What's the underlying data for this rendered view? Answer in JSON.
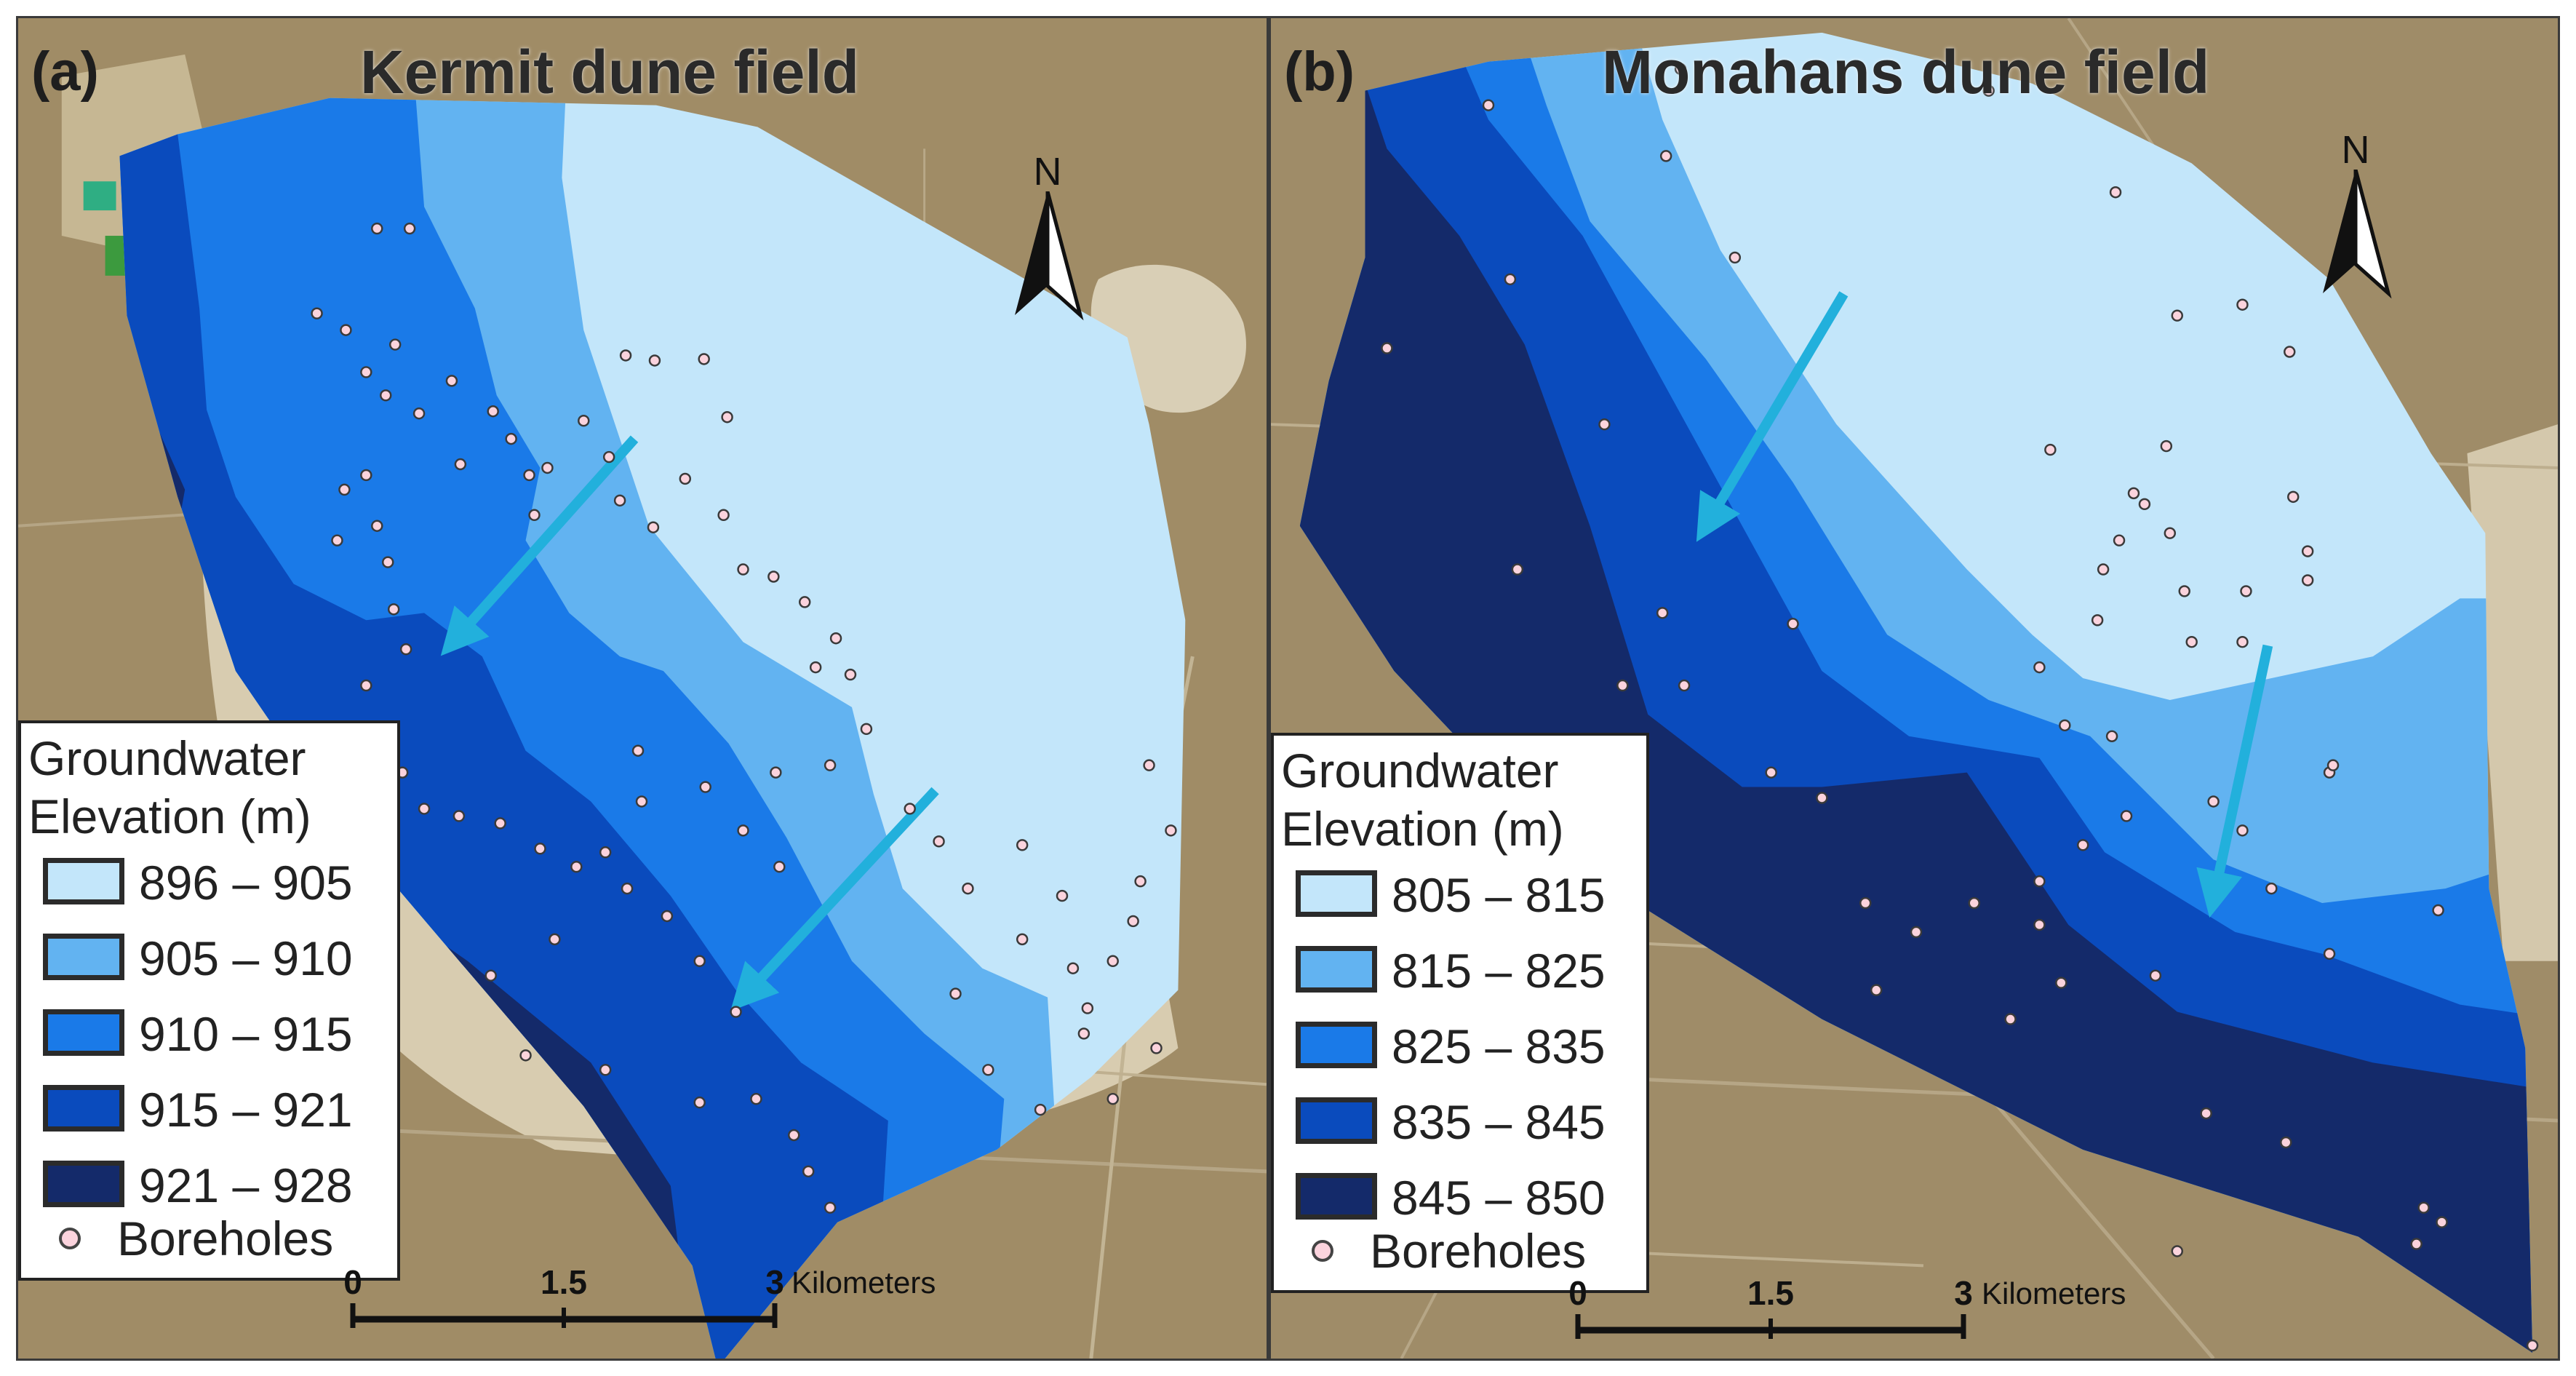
{
  "panels": [
    {
      "label": "(a)",
      "title": "Kermit dune field",
      "north": "N",
      "legend": {
        "title": "Groundwater\nElevation (m)",
        "classes": [
          {
            "range": "896 – 905",
            "color": "#c3e6fa"
          },
          {
            "range": "905 – 910",
            "color": "#62b3f1"
          },
          {
            "range": "910 – 915",
            "color": "#1a7ae8"
          },
          {
            "range": "915 – 921",
            "color": "#0a4bbd"
          },
          {
            "range": "921 – 928",
            "color": "#142a6a"
          }
        ],
        "boreholes": "Boreholes"
      },
      "scale": {
        "ticks": [
          "0",
          "1.5",
          "3"
        ],
        "unit": "Kilometers"
      }
    },
    {
      "label": "(b)",
      "title": "Monahans dune field",
      "north": "N",
      "legend": {
        "title": "Groundwater\nElevation (m)",
        "classes": [
          {
            "range": "805 – 815",
            "color": "#c3e6fa"
          },
          {
            "range": "815 – 825",
            "color": "#62b3f1"
          },
          {
            "range": "825 – 835",
            "color": "#1a7ae8"
          },
          {
            "range": "835 – 845",
            "color": "#0a4bbd"
          },
          {
            "range": "845 – 850",
            "color": "#142a6a"
          }
        ],
        "boreholes": "Boreholes"
      },
      "scale": {
        "ticks": [
          "0",
          "1.5",
          "3"
        ],
        "unit": "Kilometers"
      }
    }
  ],
  "colors": {
    "flow_arrow": "#22b0dc",
    "borehole_fill": "#fbd3dd",
    "imagery_background": "#a08c66",
    "dune_sand": "#d8ccb0"
  }
}
